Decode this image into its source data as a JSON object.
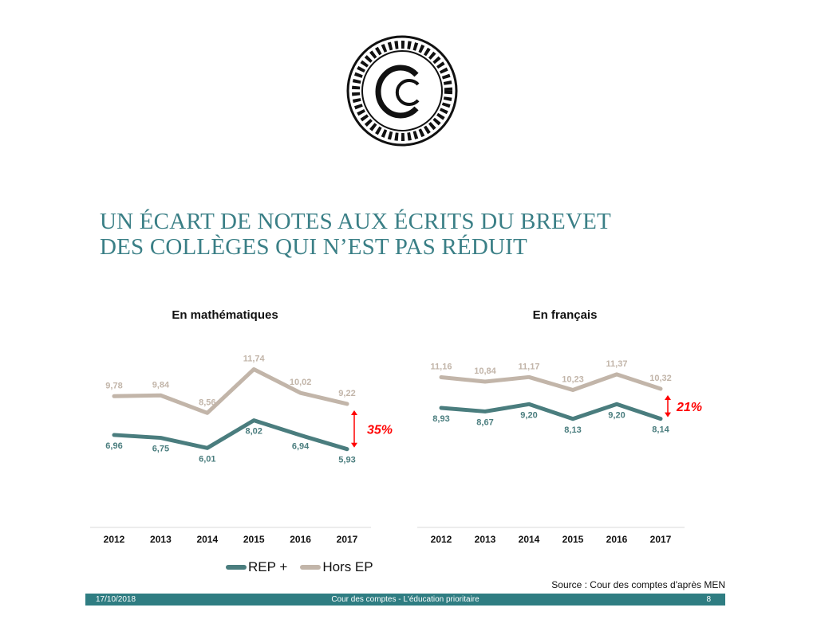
{
  "logo": {
    "text": "CC"
  },
  "title": {
    "line1": "UN ÉCART DE NOTES AUX ÉCRITS DU BREVET",
    "line2": "DES COLLÈGES QUI N’EST PAS RÉDUIT"
  },
  "colors": {
    "rep": "#4a7d7e",
    "hors": "#c2b5a9",
    "gap": "#ff0000",
    "title": "#3a7f86",
    "footer": "#2f7d82"
  },
  "chart_data": [
    {
      "type": "line",
      "title": "En mathématiques",
      "categories": [
        "2012",
        "2013",
        "2014",
        "2015",
        "2016",
        "2017"
      ],
      "series": [
        {
          "name": "REP +",
          "values": [
            6.96,
            6.75,
            6.01,
            8.02,
            6.94,
            5.93
          ],
          "labels": [
            "6,96",
            "6,75",
            "6,01",
            "8,02",
            "6,94",
            "5,93"
          ]
        },
        {
          "name": "Hors EP",
          "values": [
            9.78,
            9.84,
            8.56,
            11.74,
            10.02,
            9.22
          ],
          "labels": [
            "9,78",
            "9,84",
            "8,56",
            "11,74",
            "10,02",
            "9,22"
          ]
        }
      ],
      "annotation": "35%",
      "ylim": [
        0,
        12
      ]
    },
    {
      "type": "line",
      "title": "En français",
      "categories": [
        "2012",
        "2013",
        "2014",
        "2015",
        "2016",
        "2017"
      ],
      "series": [
        {
          "name": "REP +",
          "values": [
            8.93,
            8.67,
            9.2,
            8.13,
            9.2,
            8.14
          ],
          "labels": [
            "8,93",
            "8,67",
            "9,20",
            "8,13",
            "9,20",
            "8,14"
          ]
        },
        {
          "name": "Hors EP",
          "values": [
            11.16,
            10.84,
            11.17,
            10.23,
            11.37,
            10.32
          ],
          "labels": [
            "11,16",
            "10,84",
            "11,17",
            "10,23",
            "11,37",
            "10,32"
          ]
        }
      ],
      "annotation": "21%",
      "ylim": [
        0,
        12
      ]
    }
  ],
  "legend": {
    "rep": "REP +",
    "hors": "Hors EP"
  },
  "source": "Source : Cour des comptes d'après MEN",
  "footer": {
    "date": "17/10/2018",
    "center": "Cour des comptes - L'éducation prioritaire",
    "page": "8"
  }
}
